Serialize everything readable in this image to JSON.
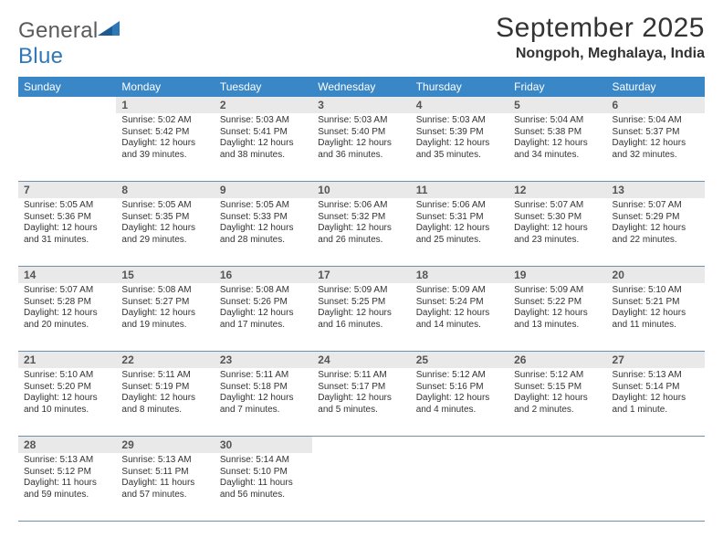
{
  "logo": {
    "word1": "General",
    "word2": "Blue"
  },
  "header": {
    "title": "September 2025",
    "location": "Nongpoh, Meghalaya, India"
  },
  "styling": {
    "header_bg": "#3a87c7",
    "header_text": "#ffffff",
    "row_border": "#6e8fad",
    "daynum_bg": "#e9e9e9",
    "daynum_color": "#555555",
    "body_text": "#333333",
    "title_fontsize": 30,
    "location_fontsize": 16,
    "th_fontsize": 12,
    "daynum_fontsize": 12,
    "detail_fontsize": 10,
    "page_bg": "#ffffff",
    "logo_gray": "#5a5a5a",
    "logo_blue": "#2f78b8"
  },
  "weekdays": [
    "Sunday",
    "Monday",
    "Tuesday",
    "Wednesday",
    "Thursday",
    "Friday",
    "Saturday"
  ],
  "cells": [
    [
      {
        "blank": true
      },
      {
        "day": "1",
        "sunrise": "Sunrise: 5:02 AM",
        "sunset": "Sunset: 5:42 PM",
        "daylight1": "Daylight: 12 hours",
        "daylight2": "and 39 minutes."
      },
      {
        "day": "2",
        "sunrise": "Sunrise: 5:03 AM",
        "sunset": "Sunset: 5:41 PM",
        "daylight1": "Daylight: 12 hours",
        "daylight2": "and 38 minutes."
      },
      {
        "day": "3",
        "sunrise": "Sunrise: 5:03 AM",
        "sunset": "Sunset: 5:40 PM",
        "daylight1": "Daylight: 12 hours",
        "daylight2": "and 36 minutes."
      },
      {
        "day": "4",
        "sunrise": "Sunrise: 5:03 AM",
        "sunset": "Sunset: 5:39 PM",
        "daylight1": "Daylight: 12 hours",
        "daylight2": "and 35 minutes."
      },
      {
        "day": "5",
        "sunrise": "Sunrise: 5:04 AM",
        "sunset": "Sunset: 5:38 PM",
        "daylight1": "Daylight: 12 hours",
        "daylight2": "and 34 minutes."
      },
      {
        "day": "6",
        "sunrise": "Sunrise: 5:04 AM",
        "sunset": "Sunset: 5:37 PM",
        "daylight1": "Daylight: 12 hours",
        "daylight2": "and 32 minutes."
      }
    ],
    [
      {
        "day": "7",
        "sunrise": "Sunrise: 5:05 AM",
        "sunset": "Sunset: 5:36 PM",
        "daylight1": "Daylight: 12 hours",
        "daylight2": "and 31 minutes."
      },
      {
        "day": "8",
        "sunrise": "Sunrise: 5:05 AM",
        "sunset": "Sunset: 5:35 PM",
        "daylight1": "Daylight: 12 hours",
        "daylight2": "and 29 minutes."
      },
      {
        "day": "9",
        "sunrise": "Sunrise: 5:05 AM",
        "sunset": "Sunset: 5:33 PM",
        "daylight1": "Daylight: 12 hours",
        "daylight2": "and 28 minutes."
      },
      {
        "day": "10",
        "sunrise": "Sunrise: 5:06 AM",
        "sunset": "Sunset: 5:32 PM",
        "daylight1": "Daylight: 12 hours",
        "daylight2": "and 26 minutes."
      },
      {
        "day": "11",
        "sunrise": "Sunrise: 5:06 AM",
        "sunset": "Sunset: 5:31 PM",
        "daylight1": "Daylight: 12 hours",
        "daylight2": "and 25 minutes."
      },
      {
        "day": "12",
        "sunrise": "Sunrise: 5:07 AM",
        "sunset": "Sunset: 5:30 PM",
        "daylight1": "Daylight: 12 hours",
        "daylight2": "and 23 minutes."
      },
      {
        "day": "13",
        "sunrise": "Sunrise: 5:07 AM",
        "sunset": "Sunset: 5:29 PM",
        "daylight1": "Daylight: 12 hours",
        "daylight2": "and 22 minutes."
      }
    ],
    [
      {
        "day": "14",
        "sunrise": "Sunrise: 5:07 AM",
        "sunset": "Sunset: 5:28 PM",
        "daylight1": "Daylight: 12 hours",
        "daylight2": "and 20 minutes."
      },
      {
        "day": "15",
        "sunrise": "Sunrise: 5:08 AM",
        "sunset": "Sunset: 5:27 PM",
        "daylight1": "Daylight: 12 hours",
        "daylight2": "and 19 minutes."
      },
      {
        "day": "16",
        "sunrise": "Sunrise: 5:08 AM",
        "sunset": "Sunset: 5:26 PM",
        "daylight1": "Daylight: 12 hours",
        "daylight2": "and 17 minutes."
      },
      {
        "day": "17",
        "sunrise": "Sunrise: 5:09 AM",
        "sunset": "Sunset: 5:25 PM",
        "daylight1": "Daylight: 12 hours",
        "daylight2": "and 16 minutes."
      },
      {
        "day": "18",
        "sunrise": "Sunrise: 5:09 AM",
        "sunset": "Sunset: 5:24 PM",
        "daylight1": "Daylight: 12 hours",
        "daylight2": "and 14 minutes."
      },
      {
        "day": "19",
        "sunrise": "Sunrise: 5:09 AM",
        "sunset": "Sunset: 5:22 PM",
        "daylight1": "Daylight: 12 hours",
        "daylight2": "and 13 minutes."
      },
      {
        "day": "20",
        "sunrise": "Sunrise: 5:10 AM",
        "sunset": "Sunset: 5:21 PM",
        "daylight1": "Daylight: 12 hours",
        "daylight2": "and 11 minutes."
      }
    ],
    [
      {
        "day": "21",
        "sunrise": "Sunrise: 5:10 AM",
        "sunset": "Sunset: 5:20 PM",
        "daylight1": "Daylight: 12 hours",
        "daylight2": "and 10 minutes."
      },
      {
        "day": "22",
        "sunrise": "Sunrise: 5:11 AM",
        "sunset": "Sunset: 5:19 PM",
        "daylight1": "Daylight: 12 hours",
        "daylight2": "and 8 minutes."
      },
      {
        "day": "23",
        "sunrise": "Sunrise: 5:11 AM",
        "sunset": "Sunset: 5:18 PM",
        "daylight1": "Daylight: 12 hours",
        "daylight2": "and 7 minutes."
      },
      {
        "day": "24",
        "sunrise": "Sunrise: 5:11 AM",
        "sunset": "Sunset: 5:17 PM",
        "daylight1": "Daylight: 12 hours",
        "daylight2": "and 5 minutes."
      },
      {
        "day": "25",
        "sunrise": "Sunrise: 5:12 AM",
        "sunset": "Sunset: 5:16 PM",
        "daylight1": "Daylight: 12 hours",
        "daylight2": "and 4 minutes."
      },
      {
        "day": "26",
        "sunrise": "Sunrise: 5:12 AM",
        "sunset": "Sunset: 5:15 PM",
        "daylight1": "Daylight: 12 hours",
        "daylight2": "and 2 minutes."
      },
      {
        "day": "27",
        "sunrise": "Sunrise: 5:13 AM",
        "sunset": "Sunset: 5:14 PM",
        "daylight1": "Daylight: 12 hours",
        "daylight2": "and 1 minute."
      }
    ],
    [
      {
        "day": "28",
        "sunrise": "Sunrise: 5:13 AM",
        "sunset": "Sunset: 5:12 PM",
        "daylight1": "Daylight: 11 hours",
        "daylight2": "and 59 minutes."
      },
      {
        "day": "29",
        "sunrise": "Sunrise: 5:13 AM",
        "sunset": "Sunset: 5:11 PM",
        "daylight1": "Daylight: 11 hours",
        "daylight2": "and 57 minutes."
      },
      {
        "day": "30",
        "sunrise": "Sunrise: 5:14 AM",
        "sunset": "Sunset: 5:10 PM",
        "daylight1": "Daylight: 11 hours",
        "daylight2": "and 56 minutes."
      },
      {
        "blank": true
      },
      {
        "blank": true
      },
      {
        "blank": true
      },
      {
        "blank": true
      }
    ]
  ]
}
